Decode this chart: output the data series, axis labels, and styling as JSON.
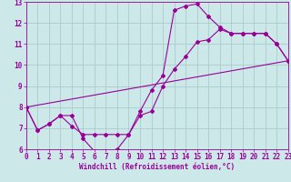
{
  "xlabel": "Windchill (Refroidissement éolien,°C)",
  "bg_color": "#cce8e8",
  "grid_color": "#aacccc",
  "line_color": "#990099",
  "x_min": 0,
  "x_max": 23,
  "y_min": 6,
  "y_max": 13,
  "curve1_x": [
    0,
    1,
    2,
    3,
    4,
    5,
    6,
    7,
    8,
    9,
    10,
    11,
    12,
    13,
    14,
    15,
    16,
    17,
    18,
    19,
    20,
    21,
    22,
    23
  ],
  "curve1_y": [
    8.0,
    6.9,
    7.2,
    7.6,
    7.6,
    6.5,
    5.9,
    5.9,
    6.0,
    6.7,
    7.8,
    8.8,
    9.5,
    12.6,
    12.8,
    12.9,
    12.3,
    11.8,
    11.5,
    11.5,
    11.5,
    11.5,
    11.0,
    10.2
  ],
  "curve2_x": [
    0,
    1,
    2,
    3,
    4,
    5,
    6,
    7,
    8,
    9,
    10,
    11,
    12,
    13,
    14,
    15,
    16,
    17,
    18,
    19,
    20,
    21,
    22,
    23
  ],
  "curve2_y": [
    8.0,
    6.9,
    7.2,
    7.6,
    7.1,
    6.7,
    6.7,
    6.7,
    6.7,
    6.7,
    7.6,
    7.8,
    9.0,
    9.8,
    10.4,
    11.1,
    11.2,
    11.7,
    11.5,
    11.5,
    11.5,
    11.5,
    11.0,
    10.2
  ],
  "curve3_x": [
    0,
    23
  ],
  "curve3_y": [
    8.0,
    10.2
  ],
  "tick_fontsize": 5.5,
  "xlabel_fontsize": 5.5,
  "marker_size": 2.0,
  "line_width": 0.8
}
